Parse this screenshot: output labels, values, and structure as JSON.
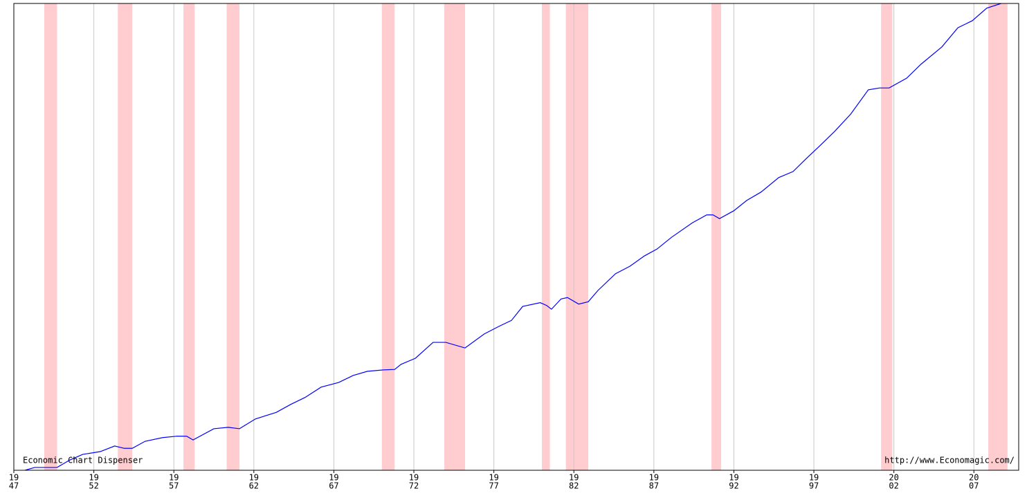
{
  "chart_data": {
    "type": "line",
    "annotations": [
      "Economic Chart Dispenser",
      "http://www.Economagic.com/"
    ],
    "series": [
      {
        "color": "#0000ff",
        "x": [
          1947.7,
          1948.3,
          1949.7,
          1950.5,
          1951.3,
          1952.4,
          1953.3,
          1953.9,
          1954.4,
          1955.2,
          1956.3,
          1957.2,
          1957.8,
          1958.2,
          1959.5,
          1960.4,
          1961.1,
          1962.1,
          1963.4,
          1964.3,
          1965.2,
          1966.2,
          1967.3,
          1968.2,
          1969.1,
          1970.1,
          1970.8,
          1971.2,
          1972.1,
          1973.2,
          1974.0,
          1975.2,
          1976.4,
          1977.3,
          1978.1,
          1978.8,
          1979.9,
          1980.3,
          1980.6,
          1981.2,
          1981.6,
          1982.3,
          1982.9,
          1983.5,
          1984.6,
          1985.5,
          1986.4,
          1987.2,
          1988.1,
          1989.4,
          1990.3,
          1990.7,
          1991.1,
          1992.0,
          1992.8,
          1993.7,
          1994.8,
          1995.7,
          1996.5,
          1997.4,
          1998.3,
          1999.3,
          2000.4,
          2001.1,
          2001.7,
          2002.8,
          2003.7,
          2005.0,
          2006.0,
          2006.9,
          2007.8,
          2008.7
        ],
        "values": [
          0,
          0.6,
          0.6,
          2.2,
          3.4,
          4.0,
          5.2,
          4.7,
          4.7,
          6.2,
          7.0,
          7.3,
          7.3,
          6.5,
          8.9,
          9.2,
          8.9,
          11.0,
          12.4,
          14.1,
          15.6,
          17.8,
          18.8,
          20.3,
          21.2,
          21.5,
          21.6,
          22.7,
          24.0,
          27.4,
          27.4,
          26.2,
          29.2,
          30.8,
          32.1,
          35.1,
          35.9,
          35.3,
          34.5,
          36.7,
          37.0,
          35.6,
          36.1,
          38.5,
          42.1,
          43.7,
          45.9,
          47.4,
          49.9,
          53.0,
          54.7,
          54.7,
          53.9,
          55.6,
          57.8,
          59.6,
          62.7,
          64.0,
          66.7,
          69.6,
          72.6,
          76.3,
          81.5,
          81.9,
          81.9,
          84.0,
          87.0,
          90.7,
          94.8,
          96.3,
          99.0,
          100
        ]
      }
    ],
    "recessions": [
      [
        1948.9,
        1949.7
      ],
      [
        1953.5,
        1954.4
      ],
      [
        1957.6,
        1958.3
      ],
      [
        1960.3,
        1961.1
      ],
      [
        1970.0,
        1970.8
      ],
      [
        1973.9,
        1975.2
      ],
      [
        1980.0,
        1980.5
      ],
      [
        1981.5,
        1982.9
      ],
      [
        1990.6,
        1991.2
      ],
      [
        2001.2,
        2001.9
      ],
      [
        2007.9,
        2009.1
      ]
    ],
    "recession_color": "#ffccd0",
    "xlim": [
      1947,
      2009.8
    ],
    "ylim": [
      0,
      100
    ],
    "xticks": [
      {
        "value": 1947,
        "label": [
          "19",
          "47"
        ]
      },
      {
        "value": 1952,
        "label": [
          "19",
          "52"
        ]
      },
      {
        "value": 1957,
        "label": [
          "19",
          "57"
        ]
      },
      {
        "value": 1962,
        "label": [
          "19",
          "62"
        ]
      },
      {
        "value": 1967,
        "label": [
          "19",
          "67"
        ]
      },
      {
        "value": 1972,
        "label": [
          "19",
          "72"
        ]
      },
      {
        "value": 1977,
        "label": [
          "19",
          "77"
        ]
      },
      {
        "value": 1982,
        "label": [
          "19",
          "82"
        ]
      },
      {
        "value": 1987,
        "label": [
          "19",
          "87"
        ]
      },
      {
        "value": 1992,
        "label": [
          "19",
          "92"
        ]
      },
      {
        "value": 1997,
        "label": [
          "19",
          "97"
        ]
      },
      {
        "value": 2002,
        "label": [
          "20",
          "02"
        ]
      },
      {
        "value": 2007,
        "label": [
          "20",
          "07"
        ]
      }
    ],
    "grid": true
  }
}
